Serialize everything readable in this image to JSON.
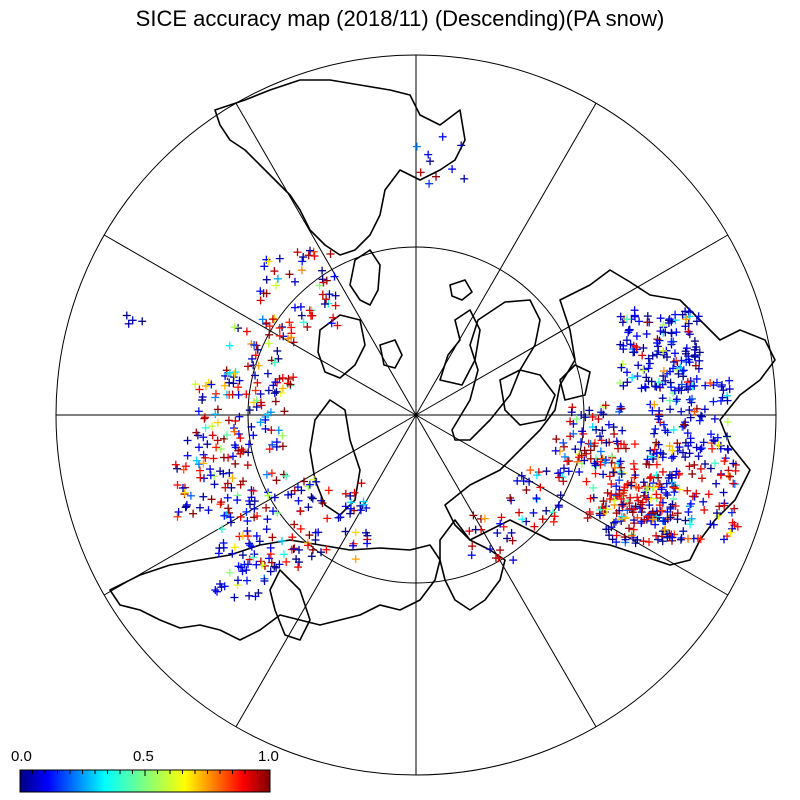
{
  "title": "SICE accuracy map (2018/11) (Descending)(PA snow)",
  "colorbar": {
    "labels": [
      "0.0",
      "0.5",
      "1.0"
    ],
    "values": [
      0.0,
      0.5,
      1.0
    ],
    "colormap": "jet",
    "stops": [
      "#00007f",
      "#0000ff",
      "#007fff",
      "#00ffff",
      "#7fff7f",
      "#ffff00",
      "#ff7f00",
      "#ff0000",
      "#7f0000"
    ]
  },
  "map": {
    "projection": "north-polar-stereographic",
    "meridian_spacing_deg": 30,
    "inner_circle_latitude_deg": 60,
    "marker": "+",
    "grid_color": "#000000",
    "coast_color": "#000000"
  }
}
